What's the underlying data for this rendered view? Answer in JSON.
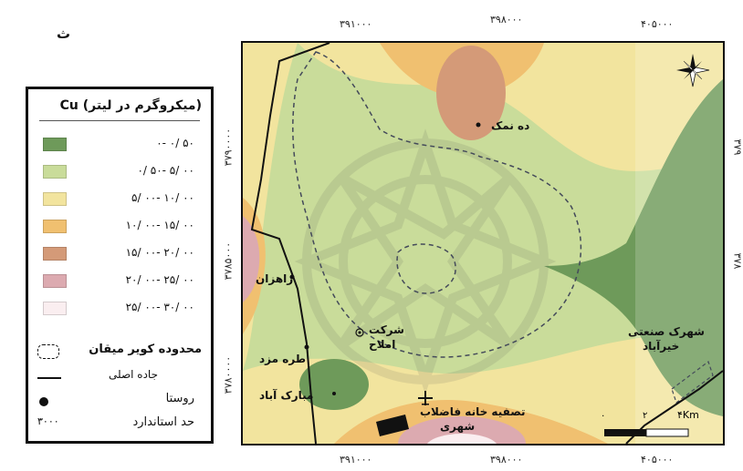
{
  "panel_letter": "ث",
  "axes": {
    "top_ticks": [
      "۳۹۱۰۰۰",
      "۳۹۸۰۰۰",
      "۴۰۵۰۰۰"
    ],
    "bottom_ticks": [
      "۳۹۱۰۰۰",
      "۳۹۸۰۰۰",
      "۴۰۵۰۰۰"
    ],
    "left_ticks": [
      "۳۷۹۰۰۰۰",
      "۳۷۸۵۰۰۰",
      "۳۷۸۰۰۰۰"
    ],
    "right_ticks": [
      "۳۷۹",
      "۳۷۸"
    ]
  },
  "legend": {
    "title": "(میکروگرم در لیتر) Cu",
    "classes": [
      {
        "label": "۰- ۰/ ۵۰",
        "color": "#6e9a5a"
      },
      {
        "label": "۰/ ۵۰- ۵/ ۰۰",
        "color": "#c9dc9a"
      },
      {
        "label": "۵/ ۰۰- ۱۰/ ۰۰",
        "color": "#f2e49e"
      },
      {
        "label": "۱۰/ ۰۰- ۱۵/ ۰۰",
        "color": "#f0c070"
      },
      {
        "label": "۱۵/ ۰۰- ۲۰/ ۰۰",
        "color": "#d49a78"
      },
      {
        "label": "۲۰/ ۰۰- ۲۵/ ۰۰",
        "color": "#dcaab0"
      },
      {
        "label": "۲۵/ ۰۰- ۳۰/ ۰۰",
        "color": "#faeef0"
      }
    ],
    "boundary_label": "محدوده کویر میقان",
    "road_label": "جاده اصلی",
    "village_label": "روستا",
    "standard_label": "حد استاندارد",
    "standard_value": "۳۰۰۰"
  },
  "places": {
    "deh_namak": "ده نمک",
    "rahzan": "راهزان",
    "sherkat_line1": "شرکت",
    "sherkat_line2": "املاح",
    "tore_mazd": "طره مزد",
    "mobarak_abad": "مبارک آباد",
    "wastewater_line1": "تصفیه خانه فاضلاب",
    "wastewater_line2": "شهری",
    "industrial_line1": "شهرک صنعتی",
    "industrial_line2": "خیرآباد"
  },
  "scale_bar": {
    "zero": "۰",
    "two": "۲",
    "four_km": "۴Km"
  },
  "icons": {
    "north_arrow": "compass-rose-icon",
    "airport": "airplane-icon"
  }
}
